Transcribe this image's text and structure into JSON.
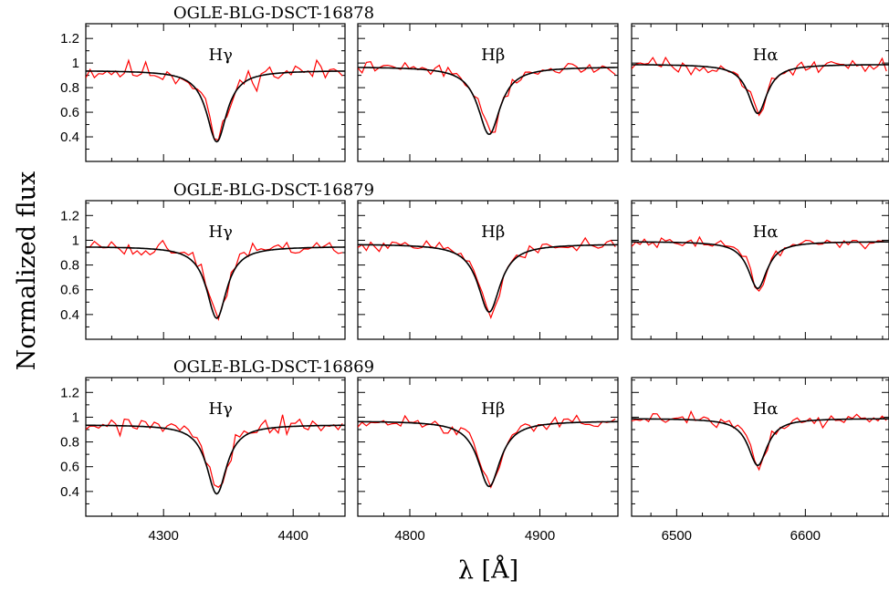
{
  "colors": {
    "observed": "#ff0000",
    "model": "#000000",
    "axes": "#000000"
  },
  "chart_data": {
    "type": "line",
    "xlabel": "λ [Å]",
    "ylabel": "Normalized flux",
    "ylim": [
      0.2,
      1.32
    ],
    "y_ticks": [
      0.4,
      0.6,
      0.8,
      1,
      1.2
    ],
    "y_tick_labels": [
      "0.4",
      "0.6",
      "0.8",
      "1",
      "1.2"
    ],
    "columns": [
      {
        "line": "Hγ",
        "xlim": [
          4240,
          4440
        ],
        "x_ticks": [
          4300,
          4400
        ],
        "x_tick_labels": [
          "4300",
          "4400"
        ],
        "center": 4341,
        "hwhm": 9.5
      },
      {
        "line": "Hβ",
        "xlim": [
          4760,
          4960
        ],
        "x_ticks": [
          4800,
          4900
        ],
        "x_tick_labels": [
          "4800",
          "4900"
        ],
        "center": 4861,
        "hwhm": 10.5
      },
      {
        "line": "Hα",
        "xlim": [
          6465,
          6665
        ],
        "x_ticks": [
          6500,
          6600
        ],
        "x_tick_labels": [
          "6500",
          "6600"
        ],
        "center": 6563,
        "hwhm": 9.0
      }
    ],
    "panels": [
      {
        "star": "OGLE-BLG-DSCT-16878",
        "model_continuum": [
          0.94,
          0.97,
          0.99
        ],
        "model_depth": [
          0.58,
          0.55,
          0.4
        ],
        "observed_seed": [
          11,
          22,
          33
        ],
        "observed_noise": [
          0.045,
          0.025,
          0.03
        ]
      },
      {
        "star": "OGLE-BLG-DSCT-16879",
        "model_continuum": [
          0.95,
          0.97,
          0.99
        ],
        "model_depth": [
          0.58,
          0.55,
          0.38
        ],
        "observed_seed": [
          44,
          55,
          66
        ],
        "observed_noise": [
          0.035,
          0.025,
          0.02
        ]
      },
      {
        "star": "OGLE-BLG-DSCT-16869",
        "model_continuum": [
          0.94,
          0.97,
          0.99
        ],
        "model_depth": [
          0.56,
          0.53,
          0.38
        ],
        "observed_seed": [
          77,
          88,
          99
        ],
        "observed_noise": [
          0.04,
          0.025,
          0.025
        ]
      }
    ],
    "series": [
      {
        "color": "red",
        "style": "noisy observed spectrum"
      },
      {
        "color": "black",
        "style": "smooth model profile"
      }
    ]
  }
}
